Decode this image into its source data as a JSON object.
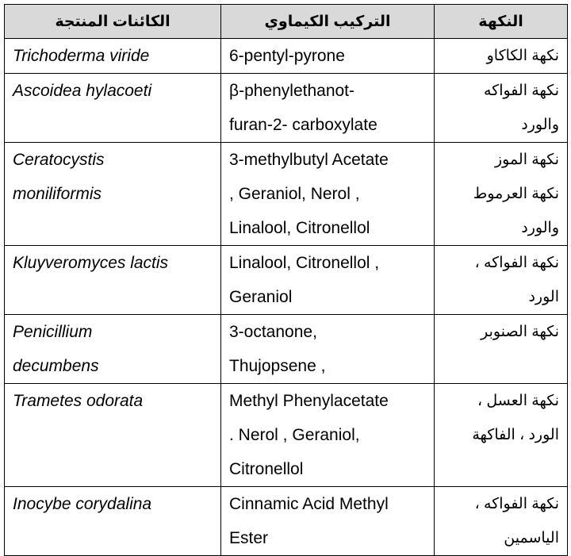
{
  "table": {
    "header": [
      "الكائنات المنتجة",
      "التركيب الكيماوي",
      "النكهة"
    ],
    "rows": [
      [
        [
          "Trichoderma viride"
        ],
        [
          "6-pentyl-pyrone"
        ],
        [
          "نكهة الكاكاو"
        ]
      ],
      [
        [
          "Ascoidea hylacoeti"
        ],
        [
          "β-phenylethanot-",
          "furan-2- carboxylate"
        ],
        [
          "نكهة الفواكه",
          "والورد"
        ]
      ],
      [
        [
          "Ceratocystis",
          "moniliformis"
        ],
        [
          "3-methylbutyl Acetate",
          ", Geraniol,  Nerol ,",
          "Linalool, Citronellol"
        ],
        [
          "نكهة الموز",
          "نكهة العرموط",
          "والورد"
        ]
      ],
      [
        [
          "Kluyveromyces lactis"
        ],
        [
          "Linalool, Citronellol ,",
          "Geraniol"
        ],
        [
          "نكهة الفواكه ،",
          "الورد"
        ]
      ],
      [
        [
          "Penicillium",
          "decumbens"
        ],
        [
          "3-octanone,",
          "Thujopsene ,"
        ],
        [
          "نكهة الصنوبر"
        ]
      ],
      [
        [
          "Trametes odorata"
        ],
        [
          "Methyl Phenylacetate",
          ". Nerol , Geraniol,",
          "Citronellol"
        ],
        [
          "نكهة العسل ،",
          "الورد ، الفاكهة"
        ]
      ],
      [
        [
          "Inocybe corydalina"
        ],
        [
          "Cinnamic Acid Methyl",
          "Ester"
        ],
        [
          "نكهة الفواكه ،",
          "الياسمين"
        ]
      ]
    ]
  }
}
